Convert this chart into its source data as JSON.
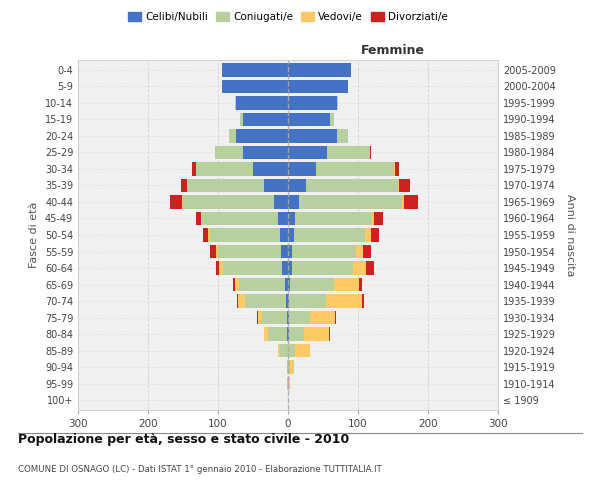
{
  "age_groups": [
    "100+",
    "95-99",
    "90-94",
    "85-89",
    "80-84",
    "75-79",
    "70-74",
    "65-69",
    "60-64",
    "55-59",
    "50-54",
    "45-49",
    "40-44",
    "35-39",
    "30-34",
    "25-29",
    "20-24",
    "15-19",
    "10-14",
    "5-9",
    "0-4"
  ],
  "birth_years": [
    "≤ 1909",
    "1910-1914",
    "1915-1919",
    "1920-1924",
    "1925-1929",
    "1930-1934",
    "1935-1939",
    "1940-1944",
    "1945-1949",
    "1950-1954",
    "1955-1959",
    "1960-1964",
    "1965-1969",
    "1970-1974",
    "1975-1979",
    "1980-1984",
    "1985-1989",
    "1990-1994",
    "1995-1999",
    "2000-2004",
    "2005-2009"
  ],
  "male": {
    "celibe": [
      0,
      0,
      0,
      0,
      1,
      2,
      3,
      5,
      8,
      10,
      12,
      15,
      20,
      35,
      50,
      65,
      75,
      65,
      75,
      95,
      95
    ],
    "coniugato": [
      0,
      1,
      2,
      12,
      28,
      35,
      58,
      65,
      85,
      90,
      100,
      108,
      130,
      110,
      82,
      40,
      10,
      3,
      1,
      0,
      0
    ],
    "vedovo": [
      0,
      0,
      0,
      3,
      5,
      6,
      10,
      6,
      5,
      3,
      2,
      1,
      1,
      0,
      0,
      0,
      0,
      0,
      0,
      0,
      0
    ],
    "divorziato": [
      0,
      0,
      0,
      0,
      1,
      1,
      2,
      3,
      5,
      8,
      8,
      8,
      18,
      8,
      5,
      0,
      0,
      0,
      0,
      0,
      0
    ]
  },
  "female": {
    "nubile": [
      0,
      0,
      0,
      0,
      1,
      1,
      2,
      3,
      5,
      5,
      8,
      10,
      15,
      25,
      40,
      55,
      70,
      60,
      70,
      85,
      90
    ],
    "coniugata": [
      0,
      1,
      3,
      10,
      22,
      30,
      52,
      62,
      88,
      92,
      102,
      108,
      148,
      132,
      112,
      62,
      15,
      5,
      2,
      0,
      0
    ],
    "vedova": [
      0,
      2,
      5,
      22,
      36,
      36,
      52,
      36,
      18,
      10,
      8,
      5,
      3,
      2,
      1,
      0,
      0,
      0,
      0,
      0,
      0
    ],
    "divorziata": [
      0,
      0,
      0,
      0,
      1,
      2,
      3,
      5,
      12,
      12,
      12,
      12,
      20,
      15,
      5,
      2,
      0,
      0,
      0,
      0,
      0
    ]
  },
  "colors": {
    "celibe": "#4472C4",
    "coniugato": "#b8cfa0",
    "vedovo": "#ffc966",
    "divorziato": "#cc2222"
  },
  "title": "Popolazione per età, sesso e stato civile - 2010",
  "subtitle": "COMUNE DI OSNAGO (LC) - Dati ISTAT 1° gennaio 2010 - Elaborazione TUTTITALIA.IT",
  "ylabel_left": "Fasce di età",
  "ylabel_right": "Anni di nascita",
  "xlabel_right": "Femmine",
  "xlim": 300,
  "bg_color": "#f0f0f0",
  "grid_color": "#cccccc",
  "legend_labels": [
    "Celibi/Nubili",
    "Coniugati/e",
    "Vedovi/e",
    "Divorziati/e"
  ]
}
